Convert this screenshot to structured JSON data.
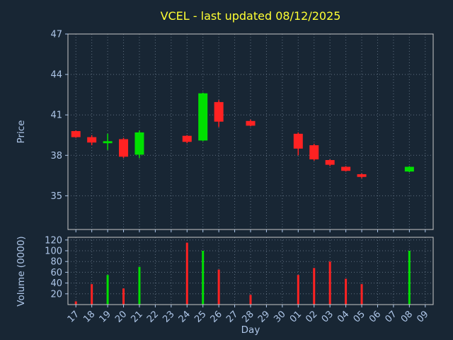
{
  "title": "VCEL - last updated 08/12/2025",
  "colors": {
    "background": "#182634",
    "title": "#ffff33",
    "axis_label": "#aec6e8",
    "tick_label": "#aec6e8",
    "grid": "#5f6f80",
    "spine": "#c8c8c8",
    "up": "#00e000",
    "down": "#ff2222"
  },
  "chart_data": {
    "type": "candlestick+volume",
    "title": "VCEL - last updated 08/12/2025",
    "xlabel": "Day",
    "price_ylabel": "Price",
    "volume_ylabel": "Volume (0000)",
    "days": [
      "17",
      "18",
      "19",
      "20",
      "21",
      "22",
      "23",
      "24",
      "25",
      "26",
      "27",
      "28",
      "29",
      "30",
      "01",
      "02",
      "03",
      "04",
      "05",
      "06",
      "07",
      "08",
      "09"
    ],
    "price_ticks": [
      35,
      38,
      41,
      44,
      47
    ],
    "price_range": [
      32.5,
      47.0
    ],
    "volume_ticks": [
      20,
      40,
      60,
      80,
      100,
      120
    ],
    "volume_range": [
      0,
      125
    ],
    "grid": true,
    "legend": "none",
    "candles": [
      {
        "open": 39.8,
        "high": 39.85,
        "low": 39.3,
        "close": 39.35
      },
      {
        "open": 39.35,
        "high": 39.5,
        "low": 38.75,
        "close": 38.95
      },
      {
        "open": 38.9,
        "high": 39.6,
        "low": 38.4,
        "close": 39.05
      },
      {
        "open": 39.2,
        "high": 39.3,
        "low": 37.8,
        "close": 37.9
      },
      {
        "open": 38.05,
        "high": 39.85,
        "low": 37.8,
        "close": 39.7
      },
      null,
      null,
      {
        "open": 39.45,
        "high": 39.5,
        "low": 38.9,
        "close": 39.0
      },
      {
        "open": 39.1,
        "high": 42.65,
        "low": 39.05,
        "close": 42.6
      },
      {
        "open": 41.95,
        "high": 42.1,
        "low": 40.1,
        "close": 40.5
      },
      null,
      {
        "open": 40.55,
        "high": 40.65,
        "low": 40.15,
        "close": 40.2
      },
      null,
      null,
      {
        "open": 39.6,
        "high": 39.7,
        "low": 38.0,
        "close": 38.5
      },
      {
        "open": 38.75,
        "high": 38.85,
        "low": 37.6,
        "close": 37.7
      },
      {
        "open": 37.65,
        "high": 37.7,
        "low": 37.2,
        "close": 37.3
      },
      {
        "open": 37.15,
        "high": 37.2,
        "low": 36.8,
        "close": 36.85
      },
      {
        "open": 36.6,
        "high": 36.65,
        "low": 36.3,
        "close": 36.4
      },
      null,
      null,
      {
        "open": 36.8,
        "high": 37.2,
        "low": 36.75,
        "close": 37.15
      },
      null
    ],
    "volumes": [
      6,
      38,
      55,
      30,
      70,
      null,
      null,
      115,
      100,
      65,
      null,
      18,
      null,
      null,
      55,
      68,
      80,
      48,
      38,
      null,
      null,
      100,
      null
    ]
  }
}
